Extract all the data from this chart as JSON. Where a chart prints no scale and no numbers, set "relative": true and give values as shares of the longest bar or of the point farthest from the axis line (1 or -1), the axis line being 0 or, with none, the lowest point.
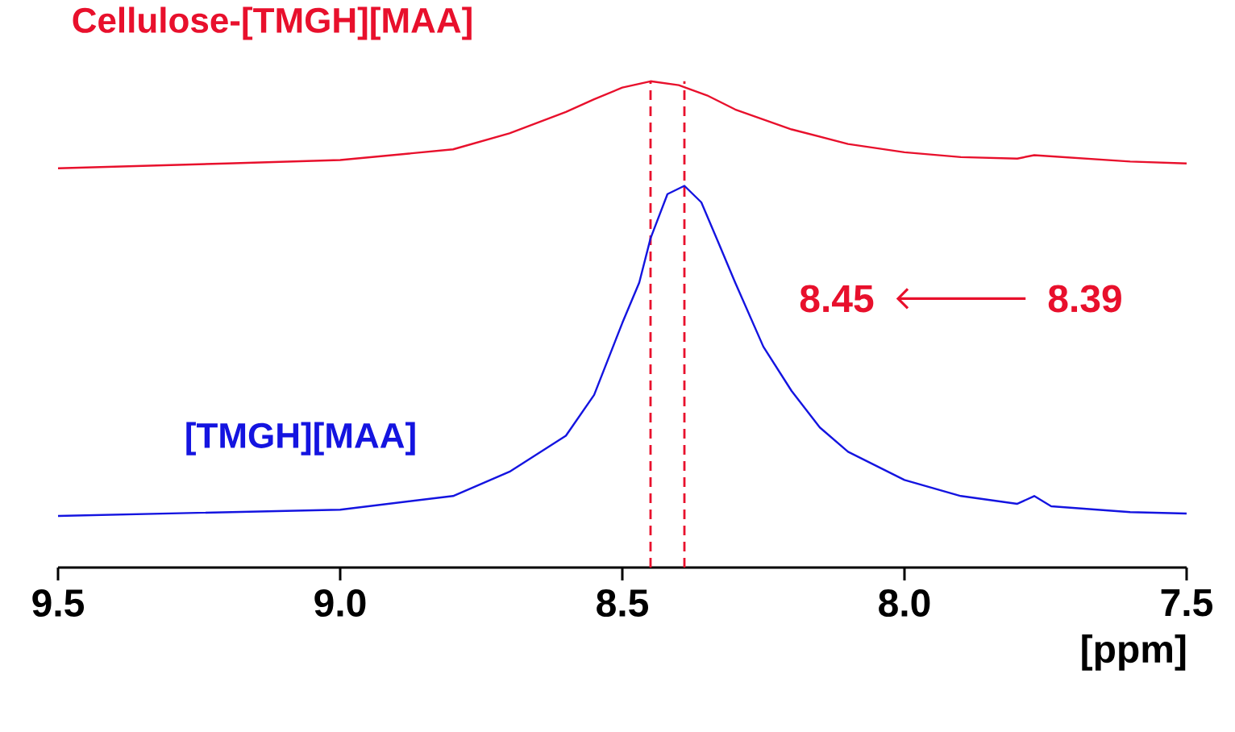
{
  "chart_data": {
    "type": "line",
    "relative": true,
    "xlabel": "[ppm]",
    "xlim": [
      9.5,
      7.5
    ],
    "xticks": [
      9.5,
      {
        "value": 9.0,
        "label": "9.0"
      },
      8.5,
      {
        "value": 8.0,
        "label": "8.0"
      },
      7.5
    ],
    "series": [
      {
        "name": "Cellulose-[TMGH][MAA]",
        "color": "#e8102c",
        "x": [
          9.5,
          9.2,
          9.0,
          8.8,
          8.7,
          8.6,
          8.55,
          8.5,
          8.45,
          8.4,
          8.35,
          8.3,
          8.2,
          8.1,
          8.0,
          7.9,
          7.8,
          7.77,
          7.6,
          7.5
        ],
        "values": [
          0.821,
          0.831,
          0.838,
          0.86,
          0.893,
          0.937,
          0.963,
          0.987,
          1,
          0.992,
          0.971,
          0.942,
          0.901,
          0.871,
          0.854,
          0.844,
          0.841,
          0.848,
          0.835,
          0.831
        ]
      },
      {
        "name": "[TMGH][MAA]",
        "color": "#1414e0",
        "x": [
          9.5,
          9.0,
          8.8,
          8.7,
          8.6,
          8.55,
          8.5,
          8.47,
          8.45,
          8.42,
          8.39,
          8.36,
          8.33,
          8.3,
          8.25,
          8.2,
          8.15,
          8.1,
          8.0,
          7.9,
          7.8,
          7.77,
          7.74,
          7.6,
          7.5
        ],
        "values": [
          0.106,
          0.119,
          0.147,
          0.197,
          0.271,
          0.355,
          0.503,
          0.586,
          0.677,
          0.768,
          0.785,
          0.751,
          0.669,
          0.586,
          0.454,
          0.363,
          0.288,
          0.238,
          0.18,
          0.147,
          0.131,
          0.147,
          0.126,
          0.114,
          0.111
        ]
      }
    ],
    "ref_lines": [
      {
        "axis": "x",
        "value": 8.45,
        "color": "#e8102c",
        "line_style": "dashed"
      },
      {
        "axis": "x",
        "value": 8.39,
        "color": "#e8102c",
        "line_style": "dashed"
      }
    ],
    "annotations": [
      "8.45",
      "8.39"
    ]
  }
}
